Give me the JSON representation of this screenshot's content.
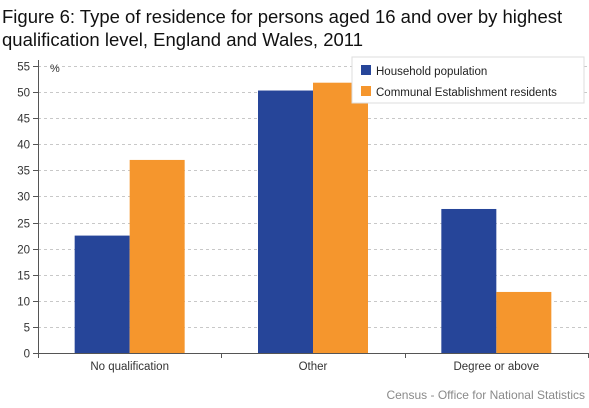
{
  "chart_data": {
    "type": "bar",
    "title": "Figure 6: Type of residence for persons aged 16 and over by highest qualification level, England and Wales, 2011",
    "ylabel": "%",
    "xlabel": "",
    "categories": [
      "No qualification",
      "Other",
      "Degree or above"
    ],
    "series": [
      {
        "name": "Household population",
        "values": [
          22.5,
          50.3,
          27.6
        ],
        "color": "#264599"
      },
      {
        "name": "Communal Establishment residents",
        "values": [
          37.0,
          51.8,
          11.7
        ],
        "color": "#f5962d"
      }
    ],
    "ylim": [
      0,
      55
    ],
    "yticks": [
      0,
      5,
      10,
      15,
      20,
      25,
      30,
      35,
      40,
      45,
      50,
      55
    ],
    "grid": true,
    "legend_position": "top-right"
  },
  "source": "Census - Office for National Statistics"
}
